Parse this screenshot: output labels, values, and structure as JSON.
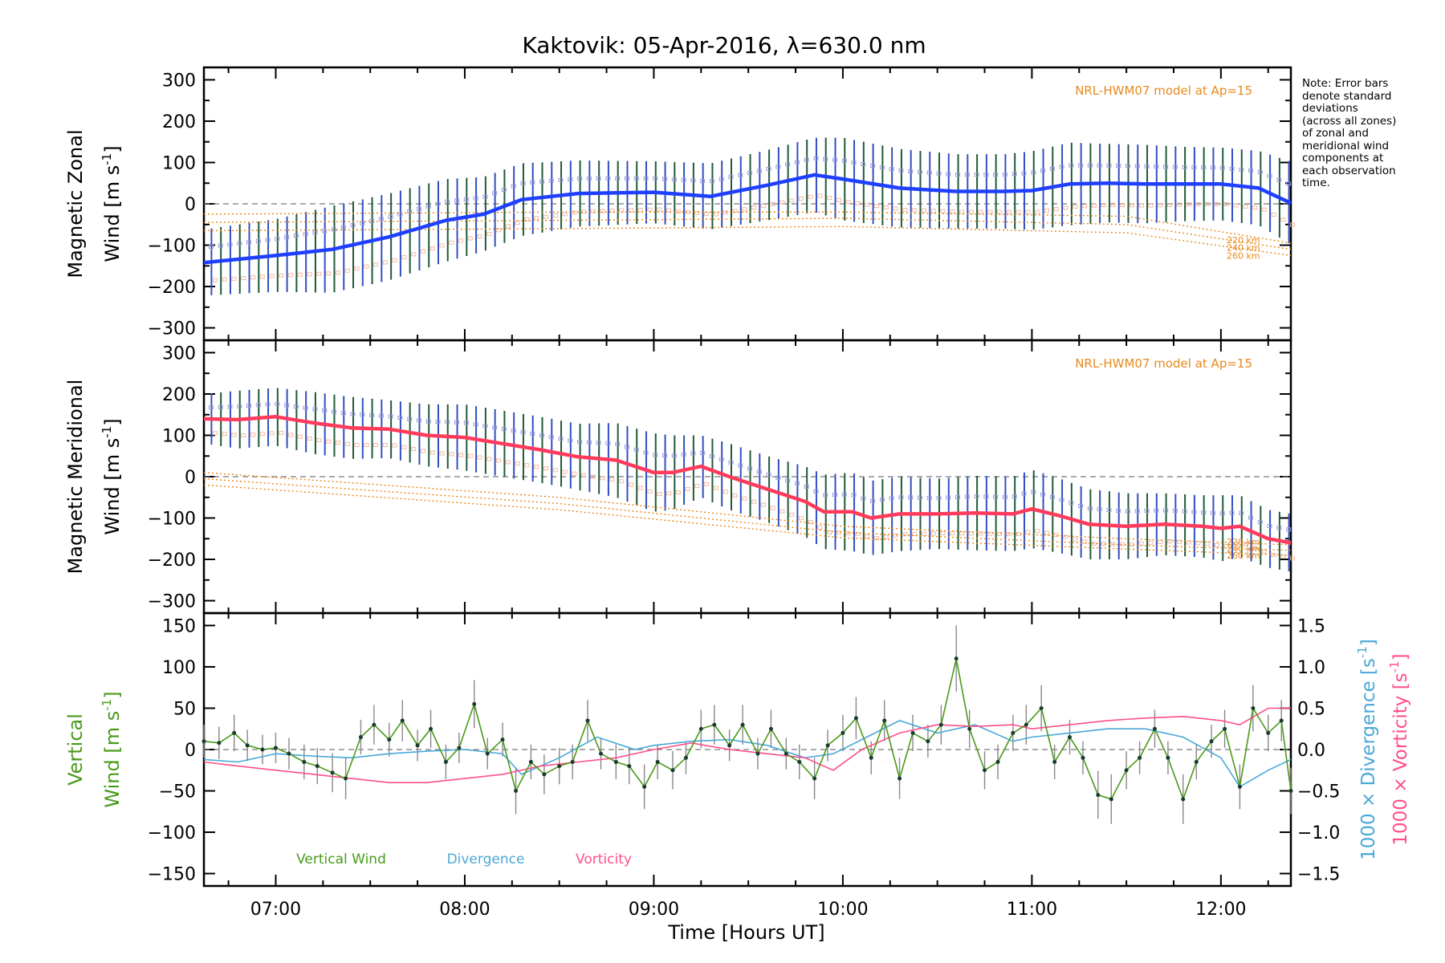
{
  "title": "Kaktovik: 05-Apr-2016, λ=630.0 nm",
  "xlabel": "Time [Hours UT]",
  "x_ticks": [
    "07:00",
    "08:00",
    "09:00",
    "10:00",
    "11:00",
    "12:00"
  ],
  "note_lines": [
    "Note: Error bars",
    "denote standard",
    "deviations",
    "(across all zones)",
    "of zonal and",
    "meridional wind",
    "components at",
    "each observation",
    "time."
  ],
  "colors": {
    "zonal": "#1f3fff",
    "meridional": "#ff3b5c",
    "vertical": "#4a9a1a",
    "divergence": "#4aa8d8",
    "vorticity": "#ff4f8a",
    "model": "#e8891e",
    "errorbar_dark": "#1f5a3a",
    "errorbar_blue": "#3050c0",
    "zone_marker": "#9a9ae0"
  },
  "chart_data": [
    {
      "type": "line",
      "panel": "zonal",
      "ylabel_line1": "Magnetic Zonal",
      "ylabel_line2": "Wind [m s",
      "ylabel_sup": "-1",
      "ylabel_close": "]",
      "x_hours": [
        6.62,
        7.0,
        7.3,
        7.6,
        7.9,
        8.1,
        8.3,
        8.6,
        9.0,
        9.3,
        9.6,
        9.85,
        10.0,
        10.3,
        10.6,
        10.85,
        11.0,
        11.2,
        11.4,
        11.6,
        11.8,
        12.0,
        12.2,
        12.37
      ],
      "values": [
        -142,
        -125,
        -110,
        -80,
        -40,
        -25,
        10,
        25,
        28,
        18,
        45,
        70,
        60,
        38,
        30,
        30,
        32,
        48,
        50,
        48,
        48,
        48,
        38,
        2
      ],
      "errorbar_half": [
        80,
        88,
        105,
        105,
        100,
        90,
        88,
        80,
        75,
        80,
        85,
        90,
        100,
        95,
        90,
        90,
        95,
        100,
        95,
        95,
        90,
        88,
        90,
        100
      ],
      "ylim": [
        -330,
        330
      ],
      "yticks": [
        -300,
        -200,
        -100,
        0,
        100,
        200,
        300
      ],
      "model_label": "NRL-HWM07 model at Ap=15",
      "model_lines": [
        {
          "name": "220 km",
          "x_hours": [
            6.62,
            8.5,
            10.0,
            11.5,
            12.37
          ],
          "values": [
            -25,
            -20,
            -20,
            -30,
            -95
          ]
        },
        {
          "name": "240 km",
          "x_hours": [
            6.62,
            8.5,
            10.0,
            11.5,
            12.37
          ],
          "values": [
            -45,
            -40,
            -35,
            -50,
            -110
          ]
        },
        {
          "name": "260 km",
          "x_hours": [
            6.62,
            8.5,
            10.0,
            11.5,
            12.37
          ],
          "values": [
            -65,
            -60,
            -55,
            -70,
            -125
          ]
        }
      ]
    },
    {
      "type": "line",
      "panel": "meridional",
      "ylabel_line1": "Magnetic Meridional",
      "ylabel_line2": "Wind [m s",
      "ylabel_sup": "-1",
      "ylabel_close": "]",
      "x_hours": [
        6.62,
        6.8,
        7.0,
        7.2,
        7.4,
        7.6,
        7.8,
        8.0,
        8.2,
        8.4,
        8.6,
        8.8,
        9.0,
        9.1,
        9.25,
        9.4,
        9.6,
        9.8,
        9.9,
        10.05,
        10.15,
        10.3,
        10.5,
        10.7,
        10.9,
        11.0,
        11.15,
        11.3,
        11.5,
        11.7,
        11.9,
        12.0,
        12.1,
        12.25,
        12.37
      ],
      "values": [
        140,
        138,
        145,
        130,
        118,
        115,
        100,
        95,
        80,
        65,
        48,
        40,
        10,
        10,
        25,
        0,
        -30,
        -60,
        -85,
        -85,
        -100,
        -90,
        -90,
        -88,
        -90,
        -78,
        -95,
        -115,
        -120,
        -115,
        -120,
        -125,
        -120,
        -150,
        -160
      ],
      "errorbar_half": [
        60,
        70,
        70,
        75,
        75,
        70,
        75,
        80,
        80,
        80,
        80,
        90,
        95,
        90,
        75,
        80,
        80,
        85,
        90,
        95,
        90,
        90,
        85,
        90,
        90,
        95,
        90,
        85,
        80,
        75,
        75,
        80,
        75,
        70,
        70
      ],
      "ylim": [
        -330,
        330
      ],
      "yticks": [
        -300,
        -200,
        -100,
        0,
        100,
        200,
        300
      ],
      "model_label": "NRL-HWM07 model at Ap=15",
      "model_lines": [
        {
          "name": "220 km",
          "x_hours": [
            6.62,
            8.5,
            10.0,
            11.5,
            12.37
          ],
          "values": [
            10,
            -50,
            -120,
            -150,
            -165
          ]
        },
        {
          "name": "240 km",
          "x_hours": [
            6.62,
            8.5,
            10.0,
            11.5,
            12.37
          ],
          "values": [
            -5,
            -65,
            -135,
            -165,
            -178
          ]
        },
        {
          "name": "260 km",
          "x_hours": [
            6.62,
            8.5,
            10.0,
            11.5,
            12.37
          ],
          "values": [
            -20,
            -80,
            -148,
            -175,
            -190
          ]
        }
      ]
    },
    {
      "type": "line",
      "panel": "vertical",
      "ylabel_left_line1": "Vertical",
      "ylabel_left_line2": "Wind [m s",
      "ylabel_sup": "-1",
      "ylabel_close": "]",
      "ylabel_right1": "1000 × Divergence [s",
      "ylabel_right2": "1000 × Vorticity [s",
      "ylim": [
        -165,
        165
      ],
      "yticks": [
        -150,
        -100,
        -50,
        0,
        50,
        100,
        150
      ],
      "y2lim": [
        -1.65,
        1.65
      ],
      "y2ticks": [
        "−1.5",
        "−1.0",
        "−0.5",
        "0.0",
        "0.5",
        "1.0",
        "1.5"
      ],
      "y2tick_values": [
        -1.5,
        -1.0,
        -0.5,
        0.0,
        0.5,
        1.0,
        1.5
      ],
      "legend": [
        "Vertical Wind",
        "Divergence",
        "Vorticity"
      ],
      "series": [
        {
          "name": "Vertical Wind",
          "x_hours": [
            6.62,
            6.7,
            6.78,
            6.85,
            6.93,
            7.0,
            7.07,
            7.15,
            7.22,
            7.3,
            7.37,
            7.45,
            7.52,
            7.6,
            7.67,
            7.75,
            7.82,
            7.9,
            7.97,
            8.05,
            8.12,
            8.2,
            8.27,
            8.35,
            8.42,
            8.5,
            8.57,
            8.65,
            8.72,
            8.8,
            8.87,
            8.95,
            9.02,
            9.1,
            9.17,
            9.25,
            9.32,
            9.4,
            9.47,
            9.55,
            9.62,
            9.7,
            9.77,
            9.85,
            9.92,
            10.0,
            10.07,
            10.15,
            10.22,
            10.3,
            10.37,
            10.45,
            10.52,
            10.6,
            10.67,
            10.75,
            10.82,
            10.9,
            10.97,
            11.05,
            11.12,
            11.2,
            11.27,
            11.35,
            11.42,
            11.5,
            11.57,
            11.65,
            11.72,
            11.8,
            11.87,
            11.95,
            12.02,
            12.1,
            12.17,
            12.25,
            12.32,
            12.37
          ],
          "values": [
            10,
            8,
            20,
            5,
            0,
            2,
            -5,
            -15,
            -20,
            -28,
            -35,
            15,
            30,
            12,
            35,
            5,
            25,
            -15,
            2,
            55,
            -5,
            12,
            -50,
            -15,
            -30,
            -20,
            -15,
            35,
            -5,
            -15,
            -20,
            -45,
            -15,
            -25,
            -10,
            25,
            30,
            5,
            30,
            -5,
            25,
            -5,
            -15,
            -35,
            5,
            20,
            38,
            -10,
            35,
            -35,
            20,
            10,
            30,
            110,
            25,
            -25,
            -15,
            20,
            30,
            50,
            -15,
            15,
            -10,
            -55,
            -60,
            -25,
            -10,
            25,
            -10,
            -60,
            -15,
            10,
            25,
            -45,
            50,
            20,
            35,
            -50
          ]
        },
        {
          "name": "Divergence",
          "x_hours": [
            6.62,
            6.8,
            7.0,
            7.2,
            7.4,
            7.6,
            7.8,
            8.0,
            8.2,
            8.3,
            8.5,
            8.7,
            8.9,
            9.0,
            9.2,
            9.4,
            9.6,
            9.8,
            9.95,
            10.1,
            10.3,
            10.5,
            10.7,
            10.9,
            11.0,
            11.2,
            11.4,
            11.6,
            11.8,
            12.0,
            12.1,
            12.25,
            12.37
          ],
          "values": [
            -0.12,
            -0.15,
            -0.05,
            -0.08,
            -0.1,
            -0.05,
            -0.02,
            0.0,
            -0.05,
            -0.3,
            -0.1,
            0.15,
            0.0,
            0.05,
            0.1,
            0.12,
            0.05,
            -0.1,
            -0.05,
            0.12,
            0.35,
            0.2,
            0.3,
            0.1,
            0.15,
            0.2,
            0.25,
            0.25,
            0.15,
            -0.1,
            -0.45,
            -0.25,
            -0.12
          ]
        },
        {
          "name": "Vorticity",
          "x_hours": [
            6.62,
            6.8,
            7.0,
            7.2,
            7.4,
            7.6,
            7.8,
            8.0,
            8.2,
            8.4,
            8.6,
            8.8,
            9.0,
            9.2,
            9.4,
            9.6,
            9.8,
            9.95,
            10.1,
            10.3,
            10.5,
            10.7,
            10.9,
            11.0,
            11.2,
            11.4,
            11.6,
            11.8,
            12.0,
            12.1,
            12.25,
            12.37
          ],
          "values": [
            -0.15,
            -0.2,
            -0.25,
            -0.3,
            -0.35,
            -0.4,
            -0.4,
            -0.35,
            -0.3,
            -0.2,
            -0.15,
            -0.1,
            0.0,
            0.08,
            0.0,
            -0.05,
            -0.1,
            -0.25,
            0.0,
            0.2,
            0.3,
            0.28,
            0.3,
            0.25,
            0.3,
            0.35,
            0.38,
            0.4,
            0.35,
            0.3,
            0.5,
            0.5
          ]
        }
      ]
    }
  ]
}
